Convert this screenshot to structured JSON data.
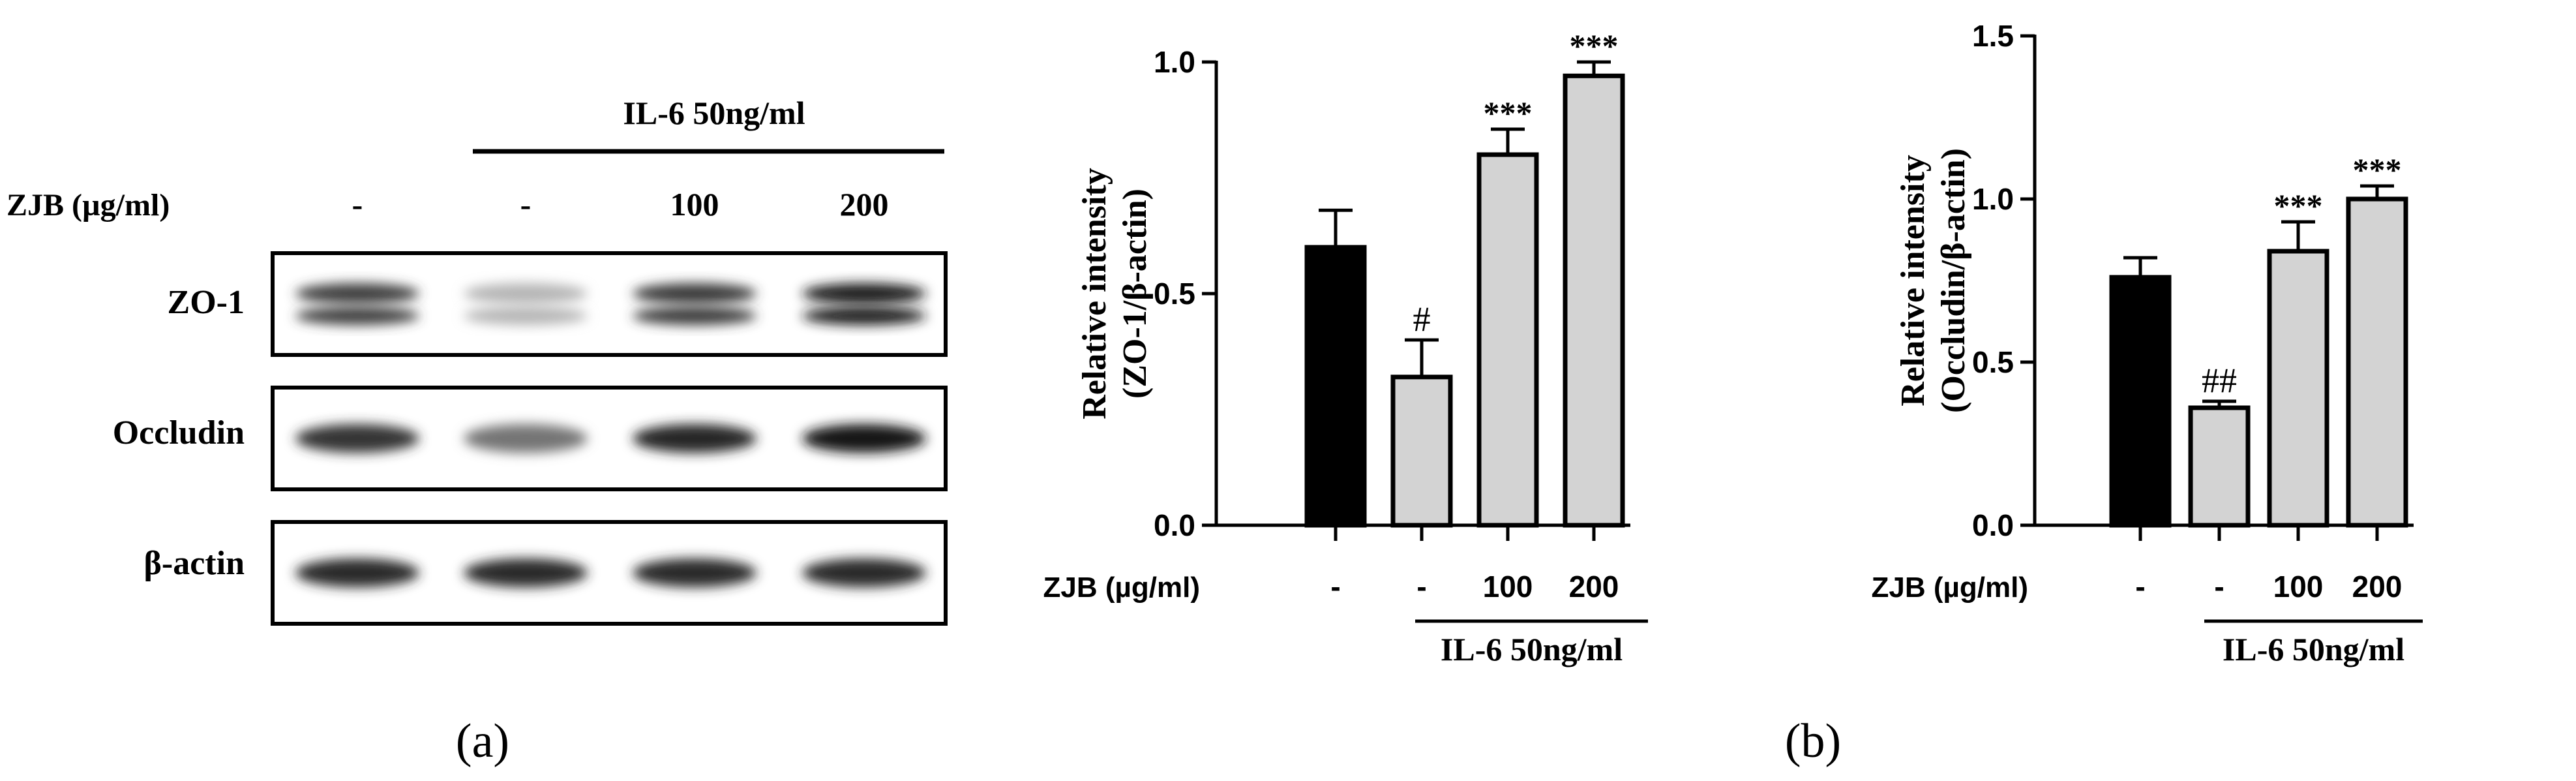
{
  "panel_a": {
    "treatment_header": "IL-6 50ng/ml",
    "dose_label": "ZJB (µg/ml)",
    "doses": [
      "-",
      "-",
      "100",
      "200"
    ],
    "blots": [
      {
        "label": "ZO-1",
        "band_intensity": [
          0.8,
          0.25,
          0.82,
          0.95
        ]
      },
      {
        "label": "Occludin",
        "band_intensity": [
          0.85,
          0.55,
          0.92,
          0.98
        ]
      },
      {
        "label": "β-actin",
        "band_intensity": [
          0.9,
          0.9,
          0.9,
          0.9
        ]
      }
    ],
    "caption": "(a)"
  },
  "caption_b": "(b)",
  "chart_data": [
    {
      "type": "bar",
      "ylabel_line1": "Relative intensity",
      "ylabel_line2": "(ZO-1/β-actin)",
      "ylim": [
        0,
        1.0
      ],
      "yticks": [
        "0.0",
        "0.5",
        "1.0"
      ],
      "ytick_values": [
        0.0,
        0.5,
        1.0
      ],
      "categories": [
        "-",
        "-",
        "100",
        "200"
      ],
      "values": [
        0.6,
        0.32,
        0.8,
        0.97
      ],
      "errors": [
        0.08,
        0.08,
        0.055,
        0.03
      ],
      "colors": [
        "#000000",
        "#d3d3d3",
        "#d3d3d3",
        "#d3d3d3"
      ],
      "annotations": [
        "",
        "#",
        "***",
        "***"
      ],
      "xlabel": "ZJB (µg/ml)",
      "group_label": "IL-6 50ng/ml"
    },
    {
      "type": "bar",
      "ylabel_line1": "Relative intensity",
      "ylabel_line2": "(Occludin/β-actin)",
      "ylim": [
        0,
        1.5
      ],
      "yticks": [
        "0.0",
        "0.5",
        "1.0",
        "1.5"
      ],
      "ytick_values": [
        0.0,
        0.5,
        1.0,
        1.5
      ],
      "categories": [
        "-",
        "-",
        "100",
        "200"
      ],
      "values": [
        0.76,
        0.36,
        0.84,
        1.0
      ],
      "errors": [
        0.06,
        0.02,
        0.09,
        0.04
      ],
      "colors": [
        "#000000",
        "#d3d3d3",
        "#d3d3d3",
        "#d3d3d3"
      ],
      "annotations": [
        "",
        "##",
        "***",
        "***"
      ],
      "xlabel": "ZJB (µg/ml)",
      "group_label": "IL-6 50ng/ml"
    }
  ]
}
